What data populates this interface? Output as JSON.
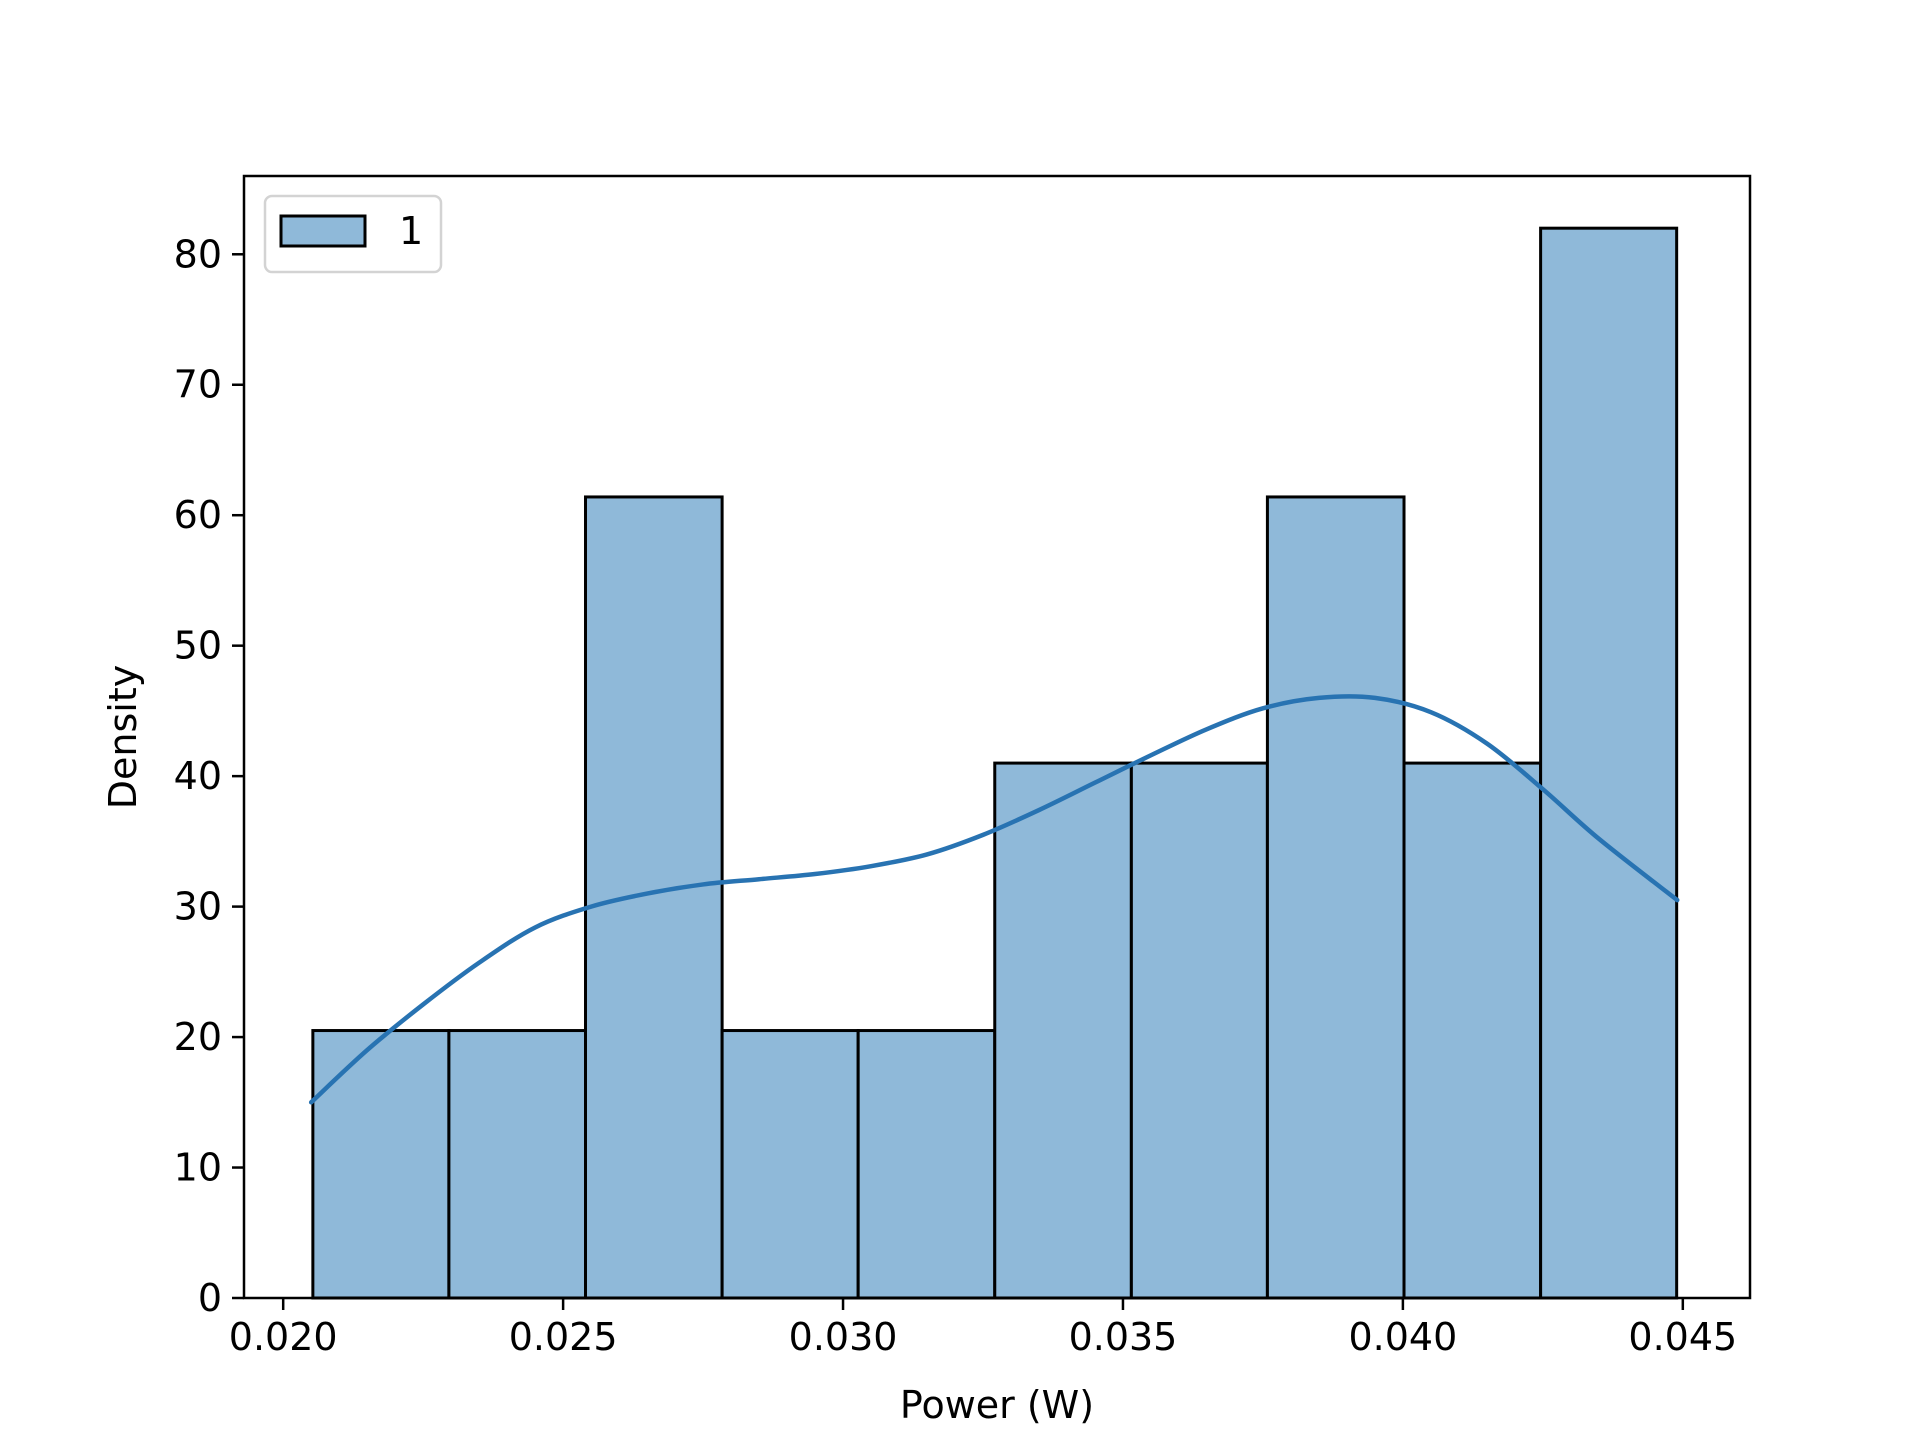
{
  "chart_data": {
    "type": "bar",
    "subtype": "histogram",
    "xlabel": "Power (W)",
    "ylabel": "Density",
    "xlim": [
      0.0193,
      0.0462
    ],
    "ylim": [
      0,
      86
    ],
    "x_ticks": [
      0.02,
      0.025,
      0.03,
      0.035,
      0.04,
      0.045
    ],
    "x_tick_labels": [
      "0.020",
      "0.025",
      "0.030",
      "0.035",
      "0.040",
      "0.045"
    ],
    "y_ticks": [
      0,
      10,
      20,
      30,
      40,
      50,
      60,
      70,
      80
    ],
    "y_tick_labels": [
      "0",
      "10",
      "20",
      "30",
      "40",
      "50",
      "60",
      "70",
      "80"
    ],
    "bins": [
      {
        "x0": 0.02053,
        "x1": 0.02296,
        "value": 20.5
      },
      {
        "x0": 0.02296,
        "x1": 0.0254,
        "value": 20.5
      },
      {
        "x0": 0.0254,
        "x1": 0.02784,
        "value": 61.4
      },
      {
        "x0": 0.02784,
        "x1": 0.03027,
        "value": 20.5
      },
      {
        "x0": 0.03027,
        "x1": 0.03271,
        "value": 20.5
      },
      {
        "x0": 0.03271,
        "x1": 0.03515,
        "value": 41.0
      },
      {
        "x0": 0.03515,
        "x1": 0.03758,
        "value": 41.0
      },
      {
        "x0": 0.03758,
        "x1": 0.04002,
        "value": 61.4
      },
      {
        "x0": 0.04002,
        "x1": 0.04246,
        "value": 41.0
      },
      {
        "x0": 0.04246,
        "x1": 0.04489,
        "value": 82.0
      }
    ],
    "kde": {
      "x": [
        0.0205,
        0.0215,
        0.0225,
        0.0235,
        0.0245,
        0.0255,
        0.0265,
        0.0275,
        0.0285,
        0.0295,
        0.0305,
        0.0315,
        0.0325,
        0.0335,
        0.0345,
        0.0355,
        0.0365,
        0.0375,
        0.0385,
        0.0395,
        0.0405,
        0.0415,
        0.0425,
        0.0435,
        0.0449
      ],
      "y": [
        15.0,
        19.0,
        22.5,
        25.7,
        28.4,
        30.0,
        31.0,
        31.7,
        32.1,
        32.5,
        33.1,
        34.0,
        35.5,
        37.4,
        39.5,
        41.6,
        43.6,
        45.2,
        46.0,
        46.0,
        44.9,
        42.5,
        39.0,
        35.2,
        30.5
      ]
    },
    "legend": {
      "entries": [
        "1"
      ],
      "placement": "upper-left"
    },
    "grid": false,
    "colors": {
      "bar_fill": "#8fb9d9",
      "bar_edge": "#000000",
      "kde_line": "#2873b2",
      "legend_border": "#d3d3d3"
    }
  }
}
